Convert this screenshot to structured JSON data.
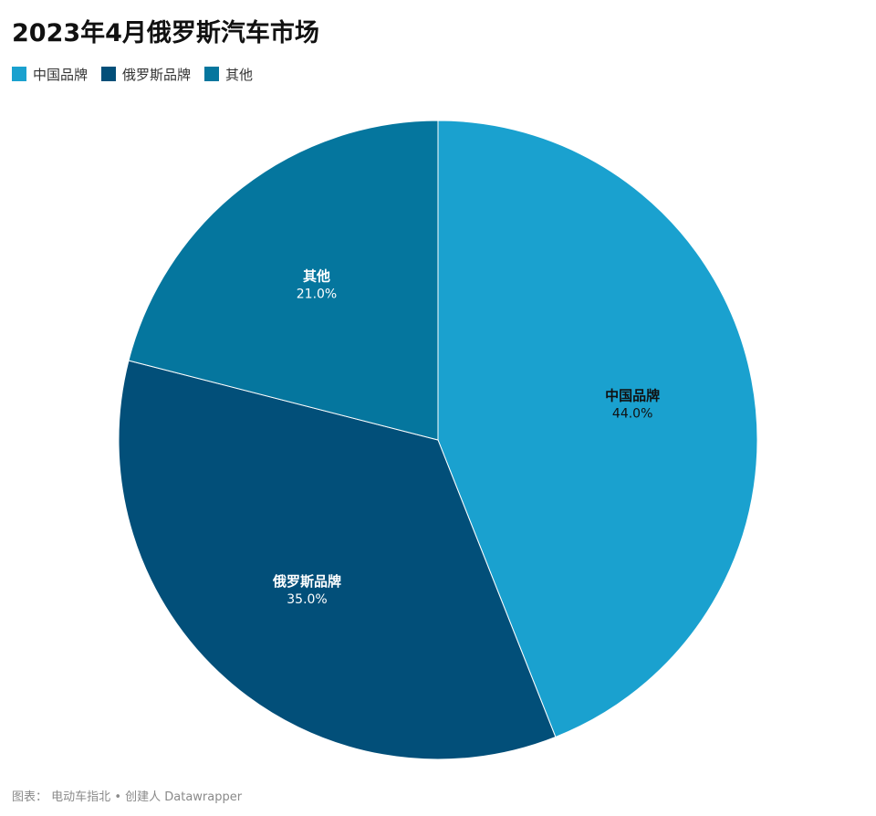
{
  "chart_data": {
    "type": "pie",
    "title": "2023年4月俄罗斯汽车市场",
    "categories": [
      "中国品牌",
      "俄罗斯品牌",
      "其他"
    ],
    "values": [
      44.0,
      35.0,
      21.0
    ],
    "value_labels": [
      "44.0%",
      "35.0%",
      "21.0%"
    ],
    "colors": [
      "#1aa1cf",
      "#024f79",
      "#05769e"
    ],
    "label_colors": [
      "#111111",
      "#ffffff",
      "#ffffff"
    ],
    "legend_placement": "top-left",
    "start_angle": "12 o'clock",
    "direction": "clockwise"
  },
  "footer": {
    "source_label": "图表：",
    "source": "电动车指北",
    "separator": "•",
    "credit": "创建人 Datawrapper"
  }
}
